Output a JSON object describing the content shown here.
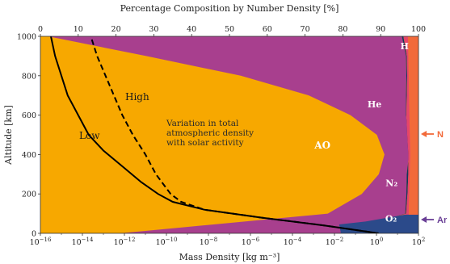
{
  "chart_data": {
    "type": "area",
    "title": "",
    "top_xlabel": "Percentage Composition by Number Density [%]",
    "top_ticks": [
      "0",
      "10",
      "20",
      "30",
      "40",
      "50",
      "60",
      "70",
      "80",
      "90",
      "100"
    ],
    "xlabel": "Mass Density [kg m⁻³]",
    "bottom_ticks": [
      {
        "base": "10",
        "exp": "−16"
      },
      {
        "base": "10",
        "exp": "−14"
      },
      {
        "base": "10",
        "exp": "−12"
      },
      {
        "base": "10",
        "exp": "−10"
      },
      {
        "base": "10",
        "exp": "−8"
      },
      {
        "base": "10",
        "exp": "−6"
      },
      {
        "base": "10",
        "exp": "−4"
      },
      {
        "base": "10",
        "exp": "−2"
      },
      {
        "base": "10",
        "exp": "0"
      },
      {
        "base": "10",
        "exp": "2"
      }
    ],
    "ylabel": "Altitude [km]",
    "yticks": [
      "0",
      "200",
      "400",
      "600",
      "800",
      "1000"
    ],
    "ylim": [
      0,
      1000
    ],
    "xlim_percent": [
      0,
      100
    ],
    "xlim_log_density": [
      -16,
      2
    ],
    "grid": false,
    "composition": {
      "altitudes": [
        0,
        100,
        200,
        300,
        400,
        500,
        600,
        700,
        800,
        900,
        1000
      ],
      "boundaries_cumulative_percent": [
        {
          "name": "AO",
          "color": "#f7a800",
          "upper": [
            21,
            76,
            85,
            89.5,
            91,
            89,
            82,
            71,
            53,
            28,
            2
          ]
        },
        {
          "name": "N₂",
          "color": "#a83f8e",
          "upper": [
            79,
            96.5,
            96.8,
            96.9,
            97.5,
            97.5,
            96.7,
            96.7,
            96.8,
            96.7,
            95.6
          ]
        },
        {
          "name": "He",
          "color": "#12365a",
          "upper": [
            79.5,
            96.7,
            97.1,
            97.3,
            97.3,
            97,
            96.8,
            96.9,
            97,
            96.9,
            96
          ]
        },
        {
          "name": "H",
          "color": "#e5456a",
          "upper": [
            100,
            100,
            100,
            100,
            100,
            100,
            100,
            100,
            100,
            100,
            100
          ]
        }
      ],
      "minor_species": [
        {
          "name": "O₂",
          "color": "#2b4a8a",
          "side_label": "Ar",
          "side_label_color": "#6a3f96"
        },
        {
          "name": "N",
          "color": "#f26a3a",
          "side_label": "N",
          "side_label_color": "#f26a3a"
        }
      ]
    },
    "series": [
      {
        "name": "Low",
        "style": "solid",
        "altitudes": [
          0,
          40,
          80,
          120,
          160,
          200,
          260,
          340,
          420,
          500,
          600,
          700,
          800,
          900,
          1000
        ],
        "log_density": [
          0.1,
          -2.5,
          -5.5,
          -8.2,
          -9.7,
          -10.4,
          -11.2,
          -12.1,
          -13.0,
          -13.7,
          -14.2,
          -14.7,
          -15.0,
          -15.3,
          -15.5
        ]
      },
      {
        "name": "High",
        "style": "dashed",
        "altitudes": [
          0,
          40,
          80,
          120,
          160,
          200,
          300,
          400,
          500,
          600,
          700,
          800,
          900,
          1000
        ],
        "log_density": [
          0.1,
          -2.5,
          -5.5,
          -8.2,
          -9.3,
          -9.8,
          -10.5,
          -11.0,
          -11.6,
          -12.1,
          -12.5,
          -12.9,
          -13.3,
          -13.6
        ]
      }
    ],
    "annotations": [
      "Variation in total atmospheric density with solar activity"
    ]
  }
}
